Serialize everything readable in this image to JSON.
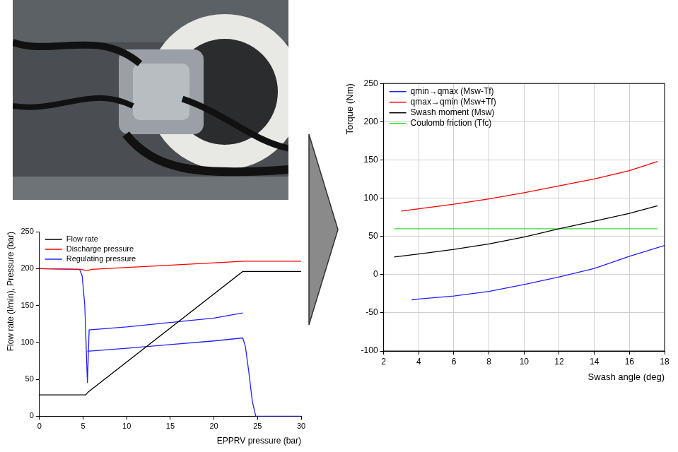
{
  "chart_data": [
    {
      "type": "line",
      "x_label": "EPPRV pressure (bar)",
      "y_label": "Flow rate (l/min), Pressure (bar)",
      "xlim": [
        0,
        30
      ],
      "xticks": [
        0,
        5,
        10,
        15,
        20,
        25,
        30
      ],
      "ylim": [
        0,
        250
      ],
      "yticks": [
        0,
        50,
        100,
        150,
        200,
        250
      ],
      "grid": false,
      "legend": "top-left",
      "series": [
        {
          "name": "Flow rate",
          "color": "#000000",
          "x": [
            0,
            5.3,
            5.6,
            23.3,
            30
          ],
          "values": [
            29,
            29,
            33,
            196,
            196
          ]
        },
        {
          "name": "Discharge pressure",
          "color": "#ff0000",
          "x": [
            0,
            4.8,
            5.4,
            6,
            23.5,
            30
          ],
          "values": [
            200,
            199,
            197,
            199,
            210,
            210
          ]
        },
        {
          "name": "Regulating pressure",
          "color": "#2020ff",
          "x": [
            0,
            4.6,
            4.9,
            5.2,
            5.5,
            5.7,
            10,
            15,
            20,
            23.3,
            23.3,
            5.5,
            10,
            15,
            20,
            23.3,
            23.6,
            24,
            24.4,
            24.8,
            30
          ],
          "values": [
            200,
            199,
            190,
            150,
            45,
            117,
            121,
            127,
            133,
            140,
            null,
            88,
            92,
            97,
            102,
            106,
            95,
            60,
            20,
            0,
            0
          ]
        }
      ]
    },
    {
      "type": "line",
      "x_label": "Swash angle (deg)",
      "y_label": "Torque (Nm)",
      "xlim": [
        2,
        18
      ],
      "xticks": [
        2,
        4,
        6,
        8,
        10,
        12,
        14,
        16,
        18
      ],
      "ylim": [
        -100,
        250
      ],
      "yticks": [
        -100,
        -50,
        0,
        50,
        100,
        150,
        200,
        250
      ],
      "grid": true,
      "legend": "top-left",
      "series": [
        {
          "name": "qmin→qmax (Msw-Tf)",
          "color": "#2020ff",
          "x": [
            3.6,
            4,
            6,
            8,
            10,
            12,
            14,
            16,
            18
          ],
          "values": [
            -33,
            -32,
            -28,
            -22,
            -13,
            -3,
            8,
            24,
            38
          ]
        },
        {
          "name": "qmax→qmin (Msw+Tf)",
          "color": "#ff0000",
          "x": [
            3,
            4,
            6,
            8,
            10,
            12,
            14,
            16,
            17.6
          ],
          "values": [
            83,
            86,
            92,
            99,
            107,
            116,
            125,
            136,
            148
          ]
        },
        {
          "name": "Swash moment (Msw)",
          "color": "#000000",
          "x": [
            2.6,
            4,
            6,
            8,
            10,
            12,
            14,
            16,
            17.6
          ],
          "values": [
            23,
            27,
            33,
            40,
            49,
            60,
            70,
            80,
            90
          ]
        },
        {
          "name": "Coulomb friction (Tfc)",
          "color": "#33dd33",
          "x": [
            2.6,
            17.6
          ],
          "values": [
            60,
            60
          ]
        }
      ]
    }
  ]
}
